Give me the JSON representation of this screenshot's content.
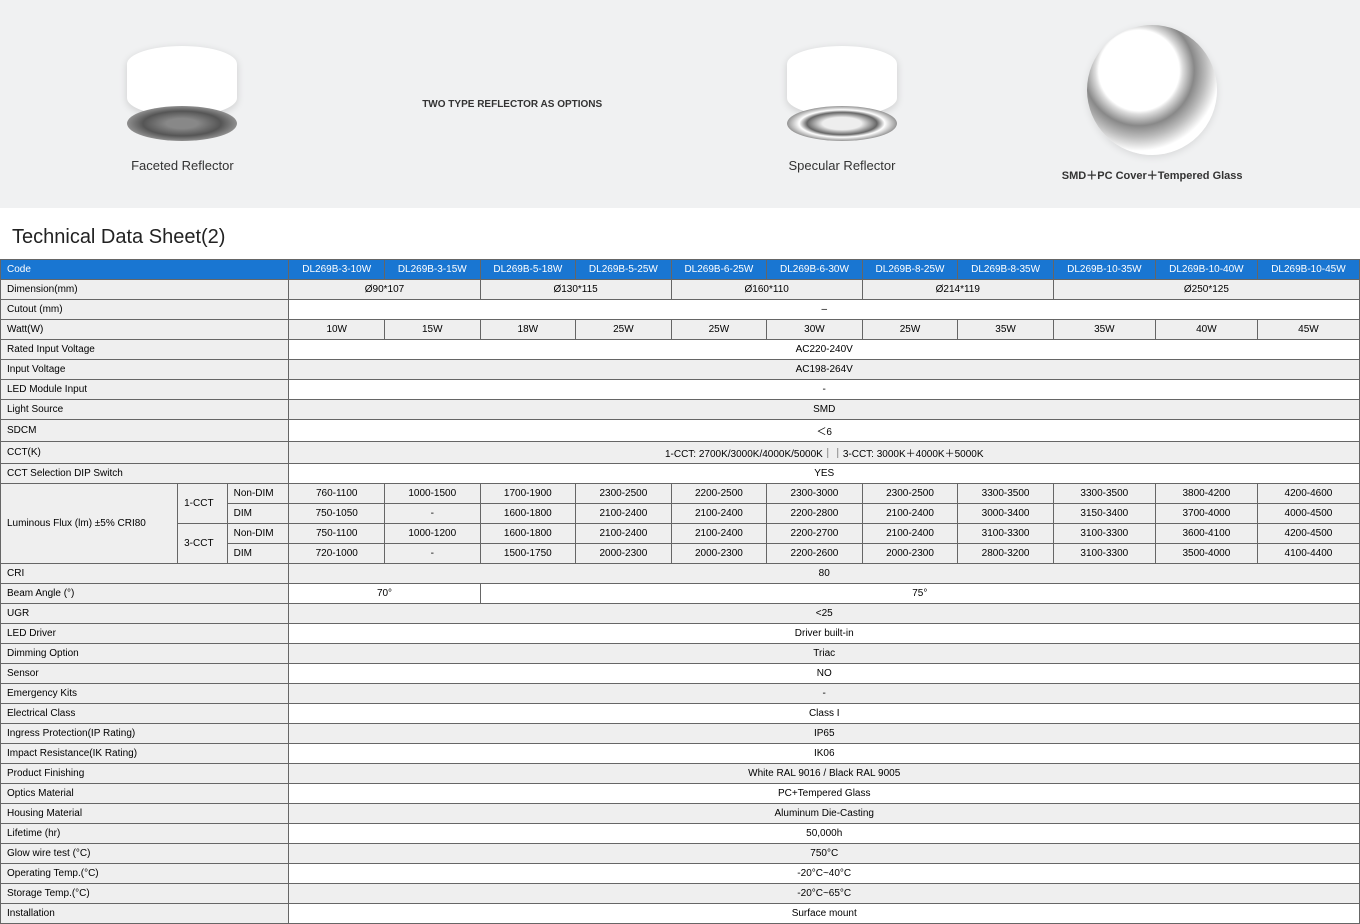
{
  "hero": {
    "faceted": "Faceted Reflector",
    "mid": "TWO TYPE REFLECTOR AS OPTIONS",
    "specular": "Specular Reflector",
    "smd": "SMD＋PC Cover＋Tempered Glass"
  },
  "title": "Technical Data Sheet(2)",
  "codes": [
    "DL269B-3-10W",
    "DL269B-3-15W",
    "DL269B-5-18W",
    "DL269B-5-25W",
    "DL269B-6-25W",
    "DL269B-6-30W",
    "DL269B-8-25W",
    "DL269B-8-35W",
    "DL269B-10-35W",
    "DL269B-10-40W",
    "DL269B-10-45W"
  ],
  "rows": {
    "code": "Code",
    "dimension": {
      "label": "Dimension(mm)",
      "vals": [
        "Ø90*107",
        "Ø130*115",
        "Ø160*110",
        "Ø214*119",
        "Ø250*125"
      ],
      "spans": [
        2,
        2,
        2,
        2,
        3
      ]
    },
    "cutout": {
      "label": "Cutout (mm)",
      "val": "–"
    },
    "watt": {
      "label": "Watt(W)",
      "vals": [
        "10W",
        "15W",
        "18W",
        "25W",
        "25W",
        "30W",
        "25W",
        "35W",
        "35W",
        "40W",
        "45W"
      ]
    },
    "rated": {
      "label": "Rated Input Voltage",
      "val": "AC220-240V"
    },
    "input": {
      "label": "Input Voltage",
      "val": "AC198-264V"
    },
    "ledmod": {
      "label": "LED Module Input",
      "val": "-"
    },
    "source": {
      "label": "Light Source",
      "val": "SMD"
    },
    "sdcm": {
      "label": "SDCM",
      "val": "＜6"
    },
    "cctk": {
      "label": "CCT(K)",
      "val": "1-CCT: 2700K/3000K/4000K/5000K｜｜3-CCT: 3000K＋4000K＋5000K"
    },
    "cctsel": {
      "label": "CCT Selection DIP Switch",
      "val": "YES"
    },
    "flux": {
      "label": "Luminous Flux (lm) ±5% CRI80",
      "cct1": "1-CCT",
      "cct3": "3-CCT",
      "nondim": "Non-DIM",
      "dim": "DIM",
      "r1": [
        "760-1100",
        "1000-1500",
        "1700-1900",
        "2300-2500",
        "2200-2500",
        "2300-3000",
        "2300-2500",
        "3300-3500",
        "3300-3500",
        "3800-4200",
        "4200-4600"
      ],
      "r2": [
        "750-1050",
        "-",
        "1600-1800",
        "2100-2400",
        "2100-2400",
        "2200-2800",
        "2100-2400",
        "3000-3400",
        "3150-3400",
        "3700-4000",
        "4000-4500"
      ],
      "r3": [
        "750-1100",
        "1000-1200",
        "1600-1800",
        "2100-2400",
        "2100-2400",
        "2200-2700",
        "2100-2400",
        "3100-3300",
        "3100-3300",
        "3600-4100",
        "4200-4500"
      ],
      "r4": [
        "720-1000",
        "-",
        "1500-1750",
        "2000-2300",
        "2000-2300",
        "2200-2600",
        "2000-2300",
        "2800-3200",
        "3100-3300",
        "3500-4000",
        "4100-4400"
      ]
    },
    "cri": {
      "label": "CRI",
      "val": "80"
    },
    "beam": {
      "label": "Beam Angle (°)",
      "v1": "70°",
      "v2": "75°"
    },
    "ugr": {
      "label": "UGR",
      "val": "<25"
    },
    "driver": {
      "label": "LED Driver",
      "val": "Driver built-in"
    },
    "dimopt": {
      "label": "Dimming Option",
      "val": "Triac"
    },
    "sensor": {
      "label": "Sensor",
      "val": "NO"
    },
    "emerg": {
      "label": "Emergency Kits",
      "val": "-"
    },
    "eclass": {
      "label": "Electrical Class",
      "val": "Class I"
    },
    "ip": {
      "label": "Ingress Protection(IP Rating)",
      "val": "IP65"
    },
    "ik": {
      "label": "Impact Resistance(IK Rating)",
      "val": "IK06"
    },
    "finish": {
      "label": "Product Finishing",
      "val": "White RAL 9016 / Black RAL 9005"
    },
    "optics": {
      "label": "Optics Material",
      "val": "PC+Tempered Glass"
    },
    "housing": {
      "label": "Housing Material",
      "val": "Aluminum Die-Casting"
    },
    "life": {
      "label": "Lifetime (hr)",
      "val": "50,000h"
    },
    "glow": {
      "label": "Glow wire test (°C)",
      "val": "750°C"
    },
    "optemp": {
      "label": "Operating Temp.(°C)",
      "val": "-20°C~40°C"
    },
    "sttemp": {
      "label": "Storage Temp.(°C)",
      "val": "-20°C~65°C"
    },
    "install": {
      "label": "Installation",
      "val": "Surface mount"
    }
  },
  "style": {
    "header_bg": "#1976d2",
    "header_fg": "#ffffff",
    "border": "#666666",
    "row_alt": "#efefef",
    "row_base": "#ffffff",
    "hero_bg": "#f0f1f2",
    "font_size_table": 10,
    "font_size_title": 20
  }
}
